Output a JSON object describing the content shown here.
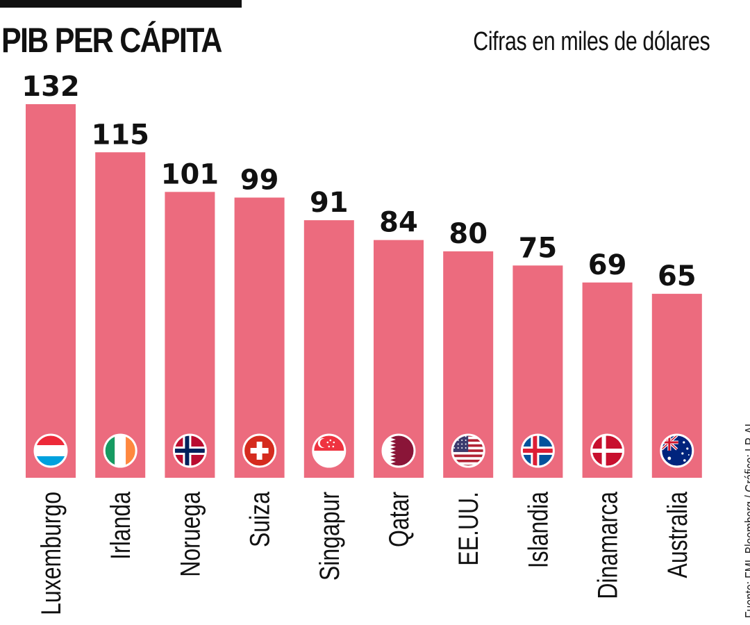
{
  "title": "PIB PER CÁPITA",
  "subtitle": "Cifras en miles de dólares",
  "source": "Fuente: FMI, Bloomberg / Gráfico: LR-AL",
  "colors": {
    "bar": "#ec6b7e",
    "text": "#111111",
    "rule": "#111111"
  },
  "chart_data": {
    "type": "bar",
    "title": "PIB PER CÁPITA",
    "subtitle": "Cifras en miles de dólares",
    "categories": [
      "Luxemburgo",
      "Irlanda",
      "Noruega",
      "Suiza",
      "Singapur",
      "Qatar",
      "EE.UU.",
      "Islandia",
      "Dinamarca",
      "Australia"
    ],
    "values": [
      132,
      115,
      101,
      99,
      91,
      84,
      80,
      75,
      69,
      65
    ],
    "data_labels": [
      "132",
      "115",
      "101",
      "99",
      "91",
      "84",
      "80",
      "75",
      "69",
      "65"
    ],
    "flags": [
      "luxembourg-flag-icon",
      "ireland-flag-icon",
      "norway-flag-icon",
      "switzerland-flag-icon",
      "singapore-flag-icon",
      "qatar-flag-icon",
      "usa-flag-icon",
      "iceland-flag-icon",
      "denmark-flag-icon",
      "australia-flag-icon"
    ],
    "ylim": [
      0,
      132
    ],
    "xlabel": "",
    "ylabel": "",
    "grid": false,
    "legend": "none"
  }
}
